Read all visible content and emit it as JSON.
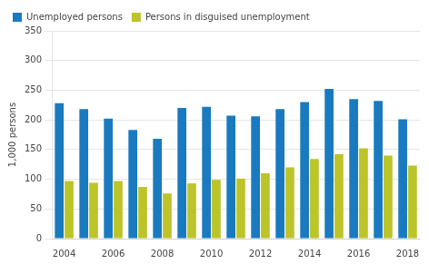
{
  "chart_data": {
    "type": "bar",
    "ylabel": "1,000 persons",
    "categories": [
      "2004",
      null,
      "2006",
      null,
      "2008",
      null,
      "2010",
      null,
      "2012",
      null,
      "2014",
      null,
      "2016",
      null,
      "2018"
    ],
    "series": [
      {
        "name": "Unemployed persons",
        "color": "#1a7abf",
        "values": [
          228,
          218,
          202,
          183,
          168,
          220,
          222,
          207,
          206,
          218,
          230,
          252,
          235,
          232,
          201
        ]
      },
      {
        "name": "Persons in disguised unemployment",
        "color": "#bcc42a",
        "values": [
          97,
          94,
          97,
          87,
          76,
          93,
          99,
          101,
          110,
          120,
          134,
          142,
          152,
          140,
          123
        ]
      }
    ],
    "ylim": [
      0,
      350
    ],
    "yticks": [
      0,
      50,
      100,
      150,
      200,
      250,
      300,
      350
    ],
    "grid": true,
    "legend": "upper left"
  }
}
